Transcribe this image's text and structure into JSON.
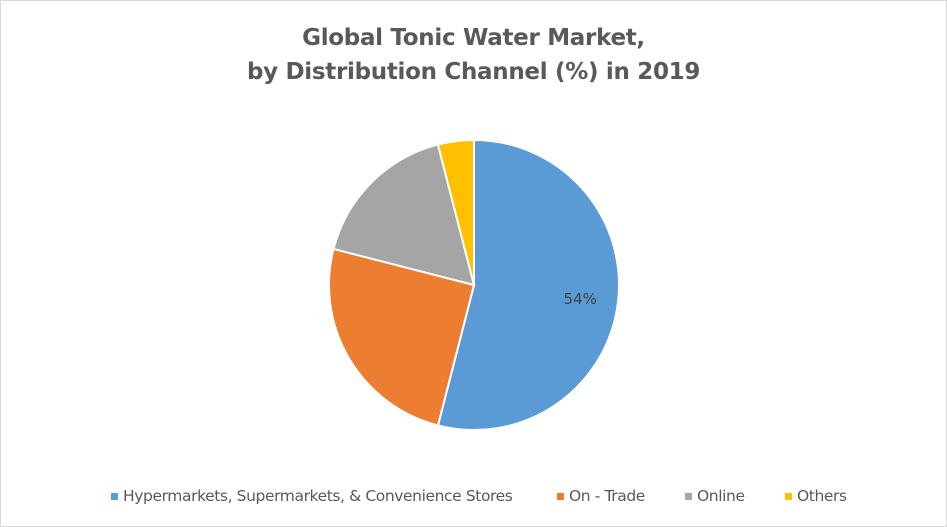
{
  "chart_data": {
    "type": "pie",
    "title": [
      "Global Tonic Water Market,",
      "by Distribution Channel (%) in 2019"
    ],
    "categories": [
      "Hypermarkets, Supermarkets, & Convenience Stores",
      "On - Trade",
      "Online",
      "Others"
    ],
    "values": [
      54,
      25,
      17,
      4
    ],
    "unit": "%",
    "data_labels": [
      "54%",
      null,
      null,
      null
    ],
    "colors": [
      "#5b9bd5",
      "#ed7d31",
      "#a5a5a5",
      "#ffc000"
    ],
    "start_angle": "12 o'clock",
    "direction": "clockwise",
    "legend": "bottom"
  }
}
